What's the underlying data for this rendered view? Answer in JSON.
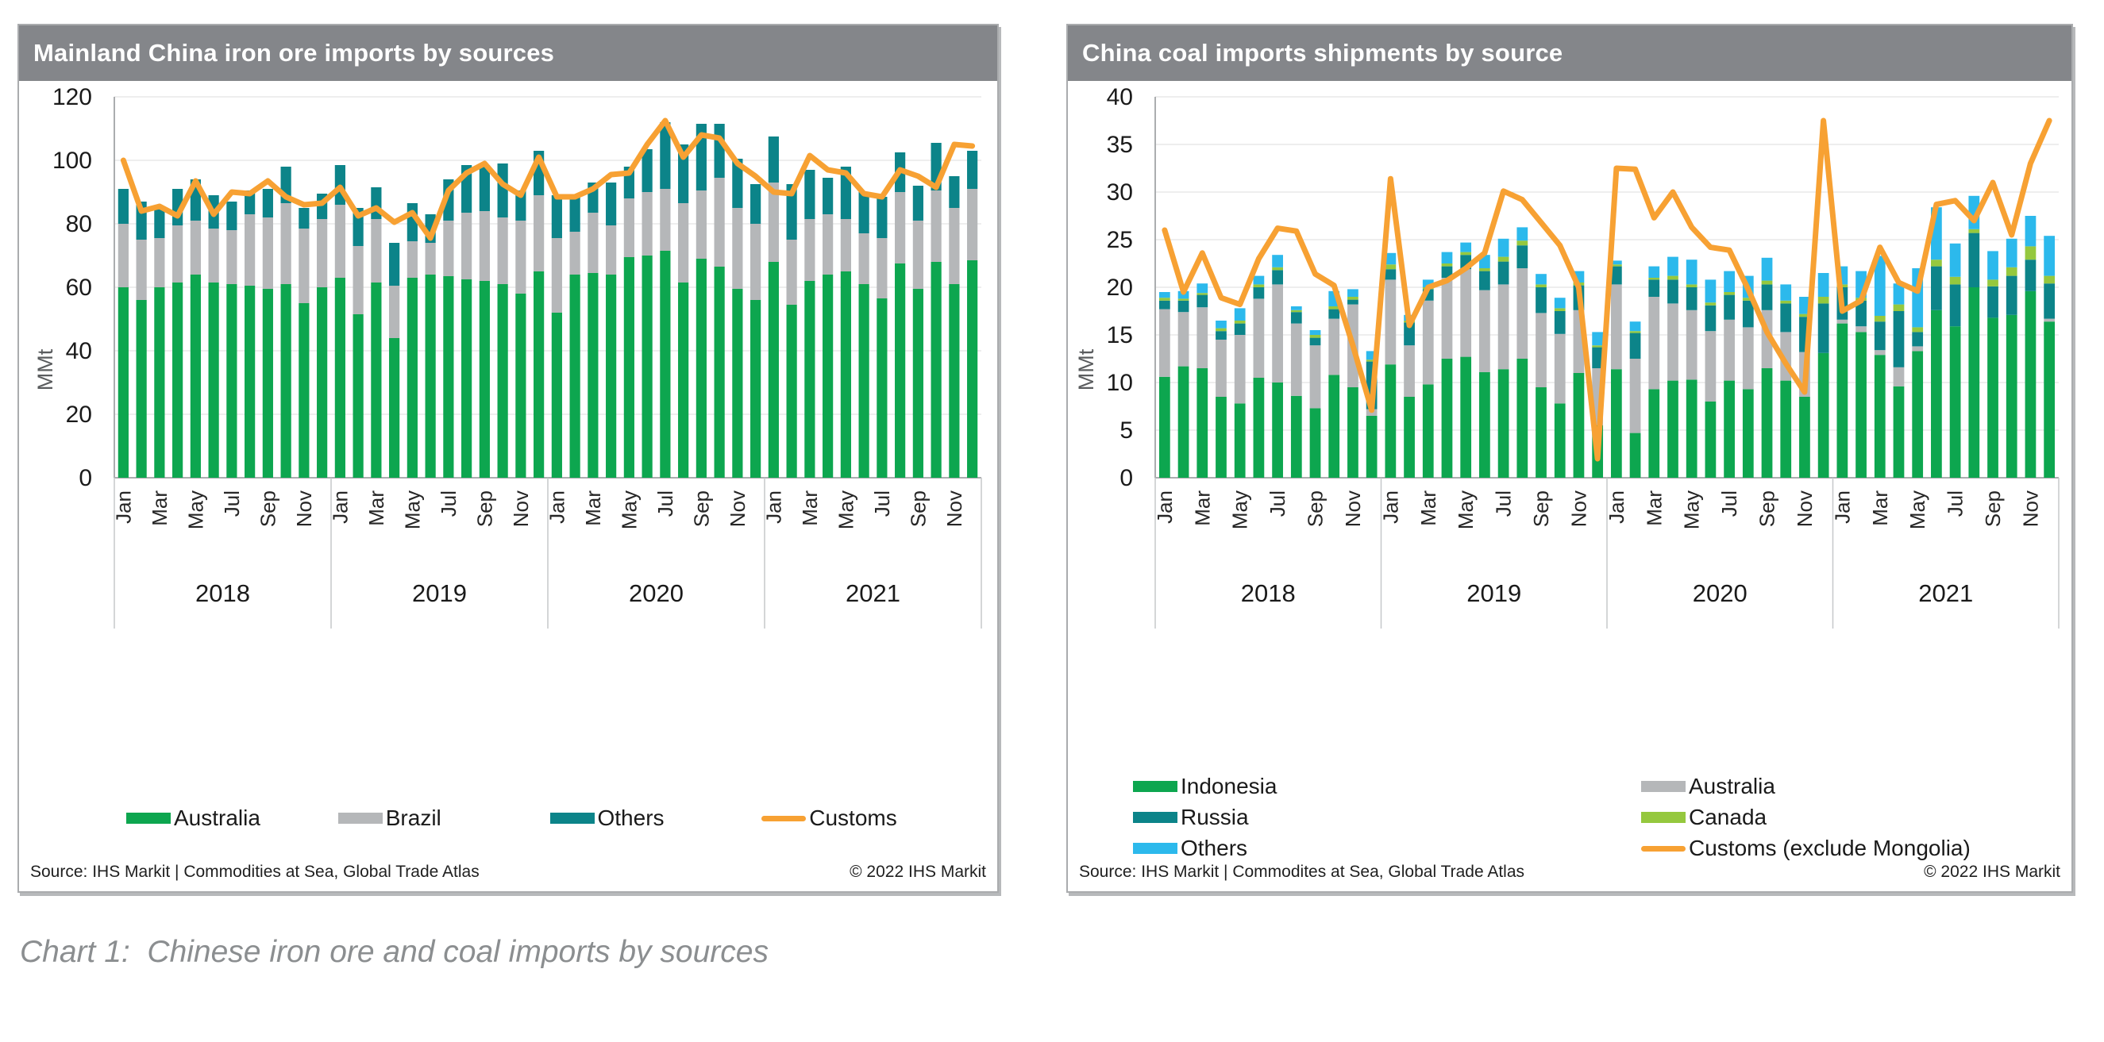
{
  "page": {
    "caption": "Chart 1:  Chinese iron ore and coal imports by sources"
  },
  "charts": [
    {
      "title": "Mainland China iron ore imports by sources",
      "source": "Source: IHS Markit | Commodities at Sea, Global Trade Atlas",
      "copyright": "© 2022 IHS Markit",
      "chart_data": {
        "type": "bar",
        "subtype": "stacked-monthly-bars-with-line",
        "title": "Mainland China iron ore imports by sources",
        "ylabel": "MMt",
        "ylim": [
          0,
          120
        ],
        "ytick_step": 20,
        "grid": "horizontal",
        "legend_position": "bottom",
        "years": [
          "2018",
          "2019",
          "2020",
          "2021"
        ],
        "month_tick_labels": [
          "Jan",
          "Mar",
          "May",
          "Jul",
          "Sep",
          "Nov"
        ],
        "series": [
          {
            "name": "Australia",
            "role": "bar",
            "color": "#0DA64F",
            "values": [
              60,
              56,
              60,
              61.5,
              64,
              61.5,
              61,
              60.5,
              59.5,
              61,
              55,
              60,
              63,
              51.5,
              61.5,
              44,
              63,
              64,
              63.5,
              62.5,
              62,
              61,
              58,
              65,
              52,
              64,
              64.5,
              64,
              69.5,
              70,
              71.5,
              61.5,
              69,
              66.5,
              59.5,
              56,
              68,
              54.5,
              62,
              64,
              65,
              61,
              56.5,
              67.5,
              59.5,
              68,
              61,
              68.5
            ]
          },
          {
            "name": "Brazil",
            "role": "bar",
            "color": "#B5B7B9",
            "values": [
              20,
              19,
              15.5,
              18,
              17,
              17,
              17,
              22.5,
              22.5,
              25.5,
              23.5,
              21.5,
              23,
              21.5,
              20,
              16.5,
              11.5,
              10,
              17.5,
              21,
              22,
              21,
              23,
              24,
              23.5,
              13.5,
              19,
              15.5,
              18.5,
              20,
              19.5,
              25,
              21.5,
              28,
              25.5,
              24,
              25,
              20.5,
              19.5,
              19,
              16.5,
              16,
              19,
              22.5,
              21.5,
              22.5,
              24,
              22.5
            ]
          },
          {
            "name": "Others",
            "role": "bar",
            "color": "#0C8489",
            "values": [
              11,
              12,
              9.5,
              11.5,
              13,
              10.5,
              9,
              7.5,
              9,
              11.5,
              6.5,
              8,
              12.5,
              12,
              10,
              13.5,
              12,
              9,
              13,
              15,
              14.5,
              17,
              9.5,
              14,
              13.5,
              11,
              9.5,
              13.5,
              10,
              13.5,
              21,
              18.5,
              21,
              17,
              15.5,
              12.5,
              14.5,
              17.5,
              15.5,
              11.5,
              16.5,
              13,
              13,
              12.5,
              11,
              15,
              10,
              12
            ]
          },
          {
            "name": "Customs",
            "role": "line",
            "color": "#F7A133",
            "values": [
              100,
              84,
              85.5,
              82.5,
              93.5,
              83,
              90,
              89.5,
              93.5,
              88.5,
              86,
              86.5,
              91.5,
              82.5,
              85,
              80.5,
              83.5,
              75.5,
              90.5,
              96,
              99,
              92.5,
              89,
              101,
              88.5,
              88.5,
              91,
              95.5,
              96,
              105,
              112.5,
              101,
              108,
              107,
              99,
              95,
              90,
              89.5,
              101.5,
              97,
              96,
              89.5,
              88.5,
              97,
              95,
              91.5,
              105,
              104.5
            ]
          }
        ],
        "legend": [
          {
            "label": "Australia",
            "color": "#0DA64F",
            "kind": "swatch"
          },
          {
            "label": "Brazil",
            "color": "#B5B7B9",
            "kind": "swatch"
          },
          {
            "label": "Others",
            "color": "#0C8489",
            "kind": "swatch"
          },
          {
            "label": "Customs",
            "color": "#F7A133",
            "kind": "line"
          }
        ]
      }
    },
    {
      "title": "China coal imports shipments by source",
      "source": "Source: IHS Markit | Commodites at Sea, Global Trade Atlas",
      "copyright": "© 2022 IHS Markit",
      "chart_data": {
        "type": "bar",
        "subtype": "stacked-monthly-bars-with-line",
        "title": "China coal imports shipments by source",
        "ylabel": "MMt",
        "ylim": [
          0,
          40
        ],
        "ytick_step": 5,
        "grid": "horizontal",
        "legend_position": "bottom",
        "years": [
          "2018",
          "2019",
          "2020",
          "2021"
        ],
        "month_tick_labels": [
          "Jan",
          "Mar",
          "May",
          "Jul",
          "Sep",
          "Nov"
        ],
        "series": [
          {
            "name": "Indonesia",
            "role": "bar",
            "color": "#0DA64F",
            "values": [
              10.6,
              11.7,
              11.5,
              8.5,
              7.8,
              10.5,
              10,
              8.6,
              7.3,
              10.8,
              9.5,
              6.5,
              11.9,
              8.5,
              9.8,
              12.5,
              12.7,
              11.1,
              11.4,
              12.5,
              9.5,
              7.8,
              11,
              5.5,
              11.4,
              4.7,
              9.3,
              10.2,
              10.3,
              8,
              10.2,
              9.3,
              11.5,
              10.2,
              8.5,
              13.1,
              16.2,
              15.3,
              12.9,
              9.6,
              13.3,
              17.6,
              15.9,
              20,
              16.8,
              17.1,
              19.6,
              16.4
            ]
          },
          {
            "name": "Australia",
            "role": "bar",
            "color": "#B5B7B9",
            "values": [
              7.1,
              5.7,
              6.4,
              6,
              7.2,
              8.3,
              10.3,
              7.6,
              6.6,
              5.9,
              8.7,
              0.7,
              8.9,
              5.4,
              8.8,
              8.5,
              9.2,
              8.6,
              8.9,
              9.5,
              7.8,
              7.3,
              6.6,
              6,
              8.9,
              7.8,
              9.7,
              8.1,
              7.3,
              7.4,
              6.4,
              6.5,
              6.1,
              5.1,
              4.7,
              0,
              0.4,
              0.6,
              0.5,
              2,
              0.5,
              0,
              0,
              0,
              0,
              0,
              0,
              0.3
            ]
          },
          {
            "name": "Russia",
            "role": "bar",
            "color": "#0C8489",
            "values": [
              0.9,
              1.2,
              1.3,
              0.9,
              1.2,
              1.2,
              1.5,
              1.2,
              0.8,
              1,
              0.5,
              5,
              1.1,
              2.4,
              1.2,
              1.2,
              1.5,
              2,
              2.4,
              2.4,
              2.7,
              2.4,
              2.6,
              2.2,
              1.9,
              2.7,
              1.8,
              2.5,
              2.4,
              2.7,
              2.6,
              2.8,
              2.7,
              3,
              3.7,
              5.2,
              3.4,
              2.7,
              3,
              5.9,
              1.5,
              4.6,
              4.4,
              5.7,
              3.3,
              4.1,
              3.3,
              3.7
            ]
          },
          {
            "name": "Canada",
            "role": "bar",
            "color": "#95C83E",
            "values": [
              0.3,
              0.2,
              0.2,
              0.3,
              0.3,
              0.3,
              0.3,
              0.2,
              0.3,
              0.3,
              0.3,
              0.2,
              0.5,
              0.2,
              0.2,
              0.3,
              0.3,
              0.3,
              0.5,
              0.5,
              0.3,
              0.3,
              0.3,
              0.2,
              0.2,
              0.2,
              0.2,
              0.4,
              0.3,
              0.3,
              0.3,
              0.3,
              0.4,
              0.3,
              0.3,
              0.7,
              0.3,
              0.3,
              0.6,
              0.7,
              0.5,
              0.7,
              0.8,
              0.4,
              0.7,
              0.9,
              1.4,
              0.8
            ]
          },
          {
            "name": "Others",
            "role": "bar",
            "color": "#2CB9EC",
            "values": [
              0.6,
              0.8,
              1,
              0.8,
              1.3,
              0.9,
              1.3,
              0.4,
              0.5,
              1.6,
              0.8,
              0.9,
              1.2,
              0.6,
              0.8,
              1.2,
              1,
              1.4,
              1.9,
              1.4,
              1.1,
              1.1,
              1.2,
              1.4,
              0.4,
              1,
              1.2,
              2,
              2.6,
              2.4,
              2.2,
              2.3,
              2.4,
              1.7,
              1.8,
              2.5,
              1.9,
              2.8,
              6.3,
              2.2,
              6.2,
              5.5,
              3.5,
              3.5,
              3,
              3,
              3.2,
              4.2
            ]
          },
          {
            "name": "Customs (exclude Mongolia)",
            "role": "line",
            "color": "#F7A133",
            "values": [
              26,
              19.5,
              23.6,
              18.9,
              18.2,
              23,
              26.2,
              25.9,
              21.4,
              20.2,
              13.9,
              7.1,
              31.4,
              16,
              20,
              20.7,
              22,
              23.6,
              30.1,
              29.2,
              26.8,
              24.4,
              20,
              2,
              32.5,
              32.4,
              27.3,
              30,
              26.3,
              24.2,
              23.9,
              19.8,
              15.3,
              12,
              9,
              37.5,
              17.5,
              18.6,
              24.2,
              20.5,
              19.6,
              28.7,
              29.1,
              27,
              31,
              25.5,
              33,
              37.5
            ]
          }
        ],
        "legend": [
          {
            "label": "Indonesia",
            "color": "#0DA64F",
            "kind": "swatch"
          },
          {
            "label": "Australia",
            "color": "#B5B7B9",
            "kind": "swatch"
          },
          {
            "label": "Russia",
            "color": "#0C8489",
            "kind": "swatch"
          },
          {
            "label": "Canada",
            "color": "#95C83E",
            "kind": "swatch"
          },
          {
            "label": "Others",
            "color": "#2CB9EC",
            "kind": "swatch"
          },
          {
            "label": "Customs (exclude Mongolia)",
            "color": "#F7A133",
            "kind": "line"
          }
        ]
      }
    }
  ]
}
